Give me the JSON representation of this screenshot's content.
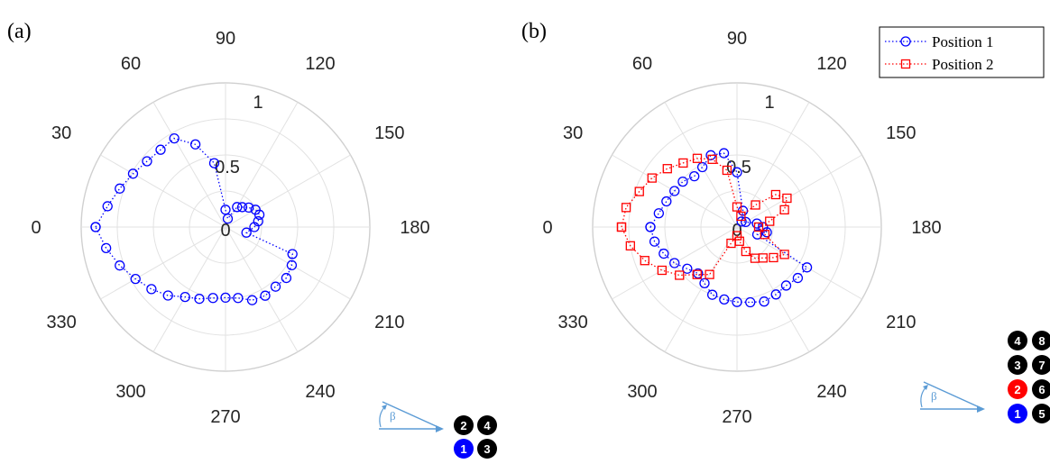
{
  "colors": {
    "position_1": "#0000ff",
    "position_2": "#ff0000",
    "grid": "#e2e2e2",
    "arrow": "#5b9bd5",
    "badge_default": "#000000"
  },
  "chart_data": [
    {
      "panel_label": "(a)",
      "type": "polar-scatter-line",
      "angle_direction": "clockwise",
      "angle_zero_location": "left",
      "angle_ticks": [
        0,
        30,
        60,
        90,
        120,
        150,
        180,
        210,
        240,
        270,
        300,
        330
      ],
      "angle_tick_labels": [
        "0",
        "30",
        "60",
        "90",
        "120",
        "150",
        "180",
        "210",
        "240",
        "270",
        "300",
        "330"
      ],
      "r_ticks": [
        0,
        0.5,
        1
      ],
      "r_tick_labels": [
        "0",
        "0.5",
        "1"
      ],
      "rlim": [
        0,
        1
      ],
      "grid": true,
      "legend": null,
      "series": [
        {
          "marker": "circle",
          "color": "#0000ff",
          "line_style": "dotted",
          "points": [
            {
              "theta": 0,
              "r": 0.9
            },
            {
              "theta": 10,
              "r": 0.83
            },
            {
              "theta": 20,
              "r": 0.78
            },
            {
              "theta": 30,
              "r": 0.74
            },
            {
              "theta": 40,
              "r": 0.71
            },
            {
              "theta": 50,
              "r": 0.7
            },
            {
              "theta": 60,
              "r": 0.71
            },
            {
              "theta": 70,
              "r": 0.61
            },
            {
              "theta": 80,
              "r": 0.45
            },
            {
              "theta": 90,
              "r": 0.12
            },
            {
              "theta": 105,
              "r": 0.06
            },
            {
              "theta": 120,
              "r": 0.16
            },
            {
              "theta": 130,
              "r": 0.18
            },
            {
              "theta": 140,
              "r": 0.21
            },
            {
              "theta": 150,
              "r": 0.24
            },
            {
              "theta": 160,
              "r": 0.25
            },
            {
              "theta": 170,
              "r": 0.23
            },
            {
              "theta": 180,
              "r": 0.2
            },
            {
              "theta": 195,
              "r": 0.15
            },
            {
              "theta": 202,
              "r": 0.5
            },
            {
              "theta": 210,
              "r": 0.53
            },
            {
              "theta": 220,
              "r": 0.55
            },
            {
              "theta": 230,
              "r": 0.54
            },
            {
              "theta": 240,
              "r": 0.55
            },
            {
              "theta": 250,
              "r": 0.54
            },
            {
              "theta": 260,
              "r": 0.5
            },
            {
              "theta": 270,
              "r": 0.49
            },
            {
              "theta": 280,
              "r": 0.5
            },
            {
              "theta": 290,
              "r": 0.53
            },
            {
              "theta": 300,
              "r": 0.56
            },
            {
              "theta": 310,
              "r": 0.62
            },
            {
              "theta": 320,
              "r": 0.67
            },
            {
              "theta": 330,
              "r": 0.72
            },
            {
              "theta": 340,
              "r": 0.78
            },
            {
              "theta": 350,
              "r": 0.84
            },
            {
              "theta": 360,
              "r": 0.9
            }
          ]
        }
      ],
      "inset": {
        "symbol": "β",
        "badges": [
          {
            "label": "2",
            "color": "#000000",
            "col": 0,
            "row": 0
          },
          {
            "label": "4",
            "color": "#000000",
            "col": 1,
            "row": 0
          },
          {
            "label": "1",
            "color": "#0000ff",
            "col": 0,
            "row": 1
          },
          {
            "label": "3",
            "color": "#000000",
            "col": 1,
            "row": 1
          }
        ]
      }
    },
    {
      "panel_label": "(b)",
      "type": "polar-scatter-line",
      "angle_direction": "clockwise",
      "angle_zero_location": "left",
      "angle_ticks": [
        0,
        30,
        60,
        90,
        120,
        150,
        180,
        210,
        240,
        270,
        300,
        330
      ],
      "angle_tick_labels": [
        "0",
        "30",
        "60",
        "90",
        "120",
        "150",
        "180",
        "210",
        "240",
        "270",
        "300",
        "330"
      ],
      "r_ticks": [
        0,
        0.5,
        1
      ],
      "r_tick_labels": [
        "0",
        "0.5",
        "1"
      ],
      "rlim": [
        0,
        1
      ],
      "grid": true,
      "legend": {
        "placement": "top-right",
        "entries": [
          "Position 1",
          "Position 2"
        ]
      },
      "series": [
        {
          "name": "Position 1",
          "marker": "circle",
          "color": "#0000ff",
          "line_style": "dotted",
          "points": [
            {
              "theta": 0,
              "r": 0.6
            },
            {
              "theta": 10,
              "r": 0.55
            },
            {
              "theta": 20,
              "r": 0.52
            },
            {
              "theta": 30,
              "r": 0.5
            },
            {
              "theta": 40,
              "r": 0.49
            },
            {
              "theta": 50,
              "r": 0.46
            },
            {
              "theta": 60,
              "r": 0.48
            },
            {
              "theta": 70,
              "r": 0.53
            },
            {
              "theta": 80,
              "r": 0.52
            },
            {
              "theta": 90,
              "r": 0.38
            },
            {
              "theta": 110,
              "r": 0.12
            },
            {
              "theta": 130,
              "r": 0.05
            },
            {
              "theta": 150,
              "r": 0.07
            },
            {
              "theta": 170,
              "r": 0.14
            },
            {
              "theta": 180,
              "r": 0.18
            },
            {
              "theta": 190,
              "r": 0.21
            },
            {
              "theta": 200,
              "r": 0.15
            },
            {
              "theta": 210,
              "r": 0.56
            },
            {
              "theta": 220,
              "r": 0.55
            },
            {
              "theta": 230,
              "r": 0.53
            },
            {
              "theta": 240,
              "r": 0.54
            },
            {
              "theta": 250,
              "r": 0.55
            },
            {
              "theta": 260,
              "r": 0.53
            },
            {
              "theta": 270,
              "r": 0.52
            },
            {
              "theta": 280,
              "r": 0.51
            },
            {
              "theta": 290,
              "r": 0.5
            },
            {
              "theta": 300,
              "r": 0.45
            },
            {
              "theta": 310,
              "r": 0.42
            },
            {
              "theta": 320,
              "r": 0.45
            },
            {
              "theta": 330,
              "r": 0.5
            },
            {
              "theta": 340,
              "r": 0.54
            },
            {
              "theta": 350,
              "r": 0.58
            },
            {
              "theta": 360,
              "r": 0.6
            }
          ]
        },
        {
          "name": "Position 2",
          "marker": "square",
          "color": "#ff0000",
          "line_style": "dotted",
          "points": [
            {
              "theta": 0,
              "r": 0.8
            },
            {
              "theta": 10,
              "r": 0.78
            },
            {
              "theta": 20,
              "r": 0.72
            },
            {
              "theta": 30,
              "r": 0.68
            },
            {
              "theta": 40,
              "r": 0.63
            },
            {
              "theta": 50,
              "r": 0.58
            },
            {
              "theta": 60,
              "r": 0.55
            },
            {
              "theta": 70,
              "r": 0.5
            },
            {
              "theta": 80,
              "r": 0.4
            },
            {
              "theta": 90,
              "r": 0.14
            },
            {
              "theta": 110,
              "r": 0.08
            },
            {
              "theta": 130,
              "r": 0.2
            },
            {
              "theta": 140,
              "r": 0.35
            },
            {
              "theta": 150,
              "r": 0.4
            },
            {
              "theta": 160,
              "r": 0.35
            },
            {
              "theta": 170,
              "r": 0.23
            },
            {
              "theta": 180,
              "r": 0.15
            },
            {
              "theta": 195,
              "r": 0.2
            },
            {
              "theta": 210,
              "r": 0.38
            },
            {
              "theta": 220,
              "r": 0.33
            },
            {
              "theta": 230,
              "r": 0.28
            },
            {
              "theta": 240,
              "r": 0.25
            },
            {
              "theta": 250,
              "r": 0.18
            },
            {
              "theta": 260,
              "r": 0.1
            },
            {
              "theta": 270,
              "r": 0.06
            },
            {
              "theta": 290,
              "r": 0.12
            },
            {
              "theta": 300,
              "r": 0.38
            },
            {
              "theta": 310,
              "r": 0.43
            },
            {
              "theta": 320,
              "r": 0.52
            },
            {
              "theta": 330,
              "r": 0.6
            },
            {
              "theta": 340,
              "r": 0.68
            },
            {
              "theta": 350,
              "r": 0.75
            },
            {
              "theta": 360,
              "r": 0.8
            }
          ]
        }
      ],
      "inset": {
        "symbol": "β",
        "badges": [
          {
            "label": "4",
            "color": "#000000",
            "col": 0,
            "row": 0
          },
          {
            "label": "8",
            "color": "#000000",
            "col": 1,
            "row": 0
          },
          {
            "label": "3",
            "color": "#000000",
            "col": 0,
            "row": 1
          },
          {
            "label": "7",
            "color": "#000000",
            "col": 1,
            "row": 1
          },
          {
            "label": "2",
            "color": "#ff0000",
            "col": 0,
            "row": 2
          },
          {
            "label": "6",
            "color": "#000000",
            "col": 1,
            "row": 2
          },
          {
            "label": "1",
            "color": "#0000ff",
            "col": 0,
            "row": 3
          },
          {
            "label": "5",
            "color": "#000000",
            "col": 1,
            "row": 3
          }
        ]
      }
    }
  ]
}
